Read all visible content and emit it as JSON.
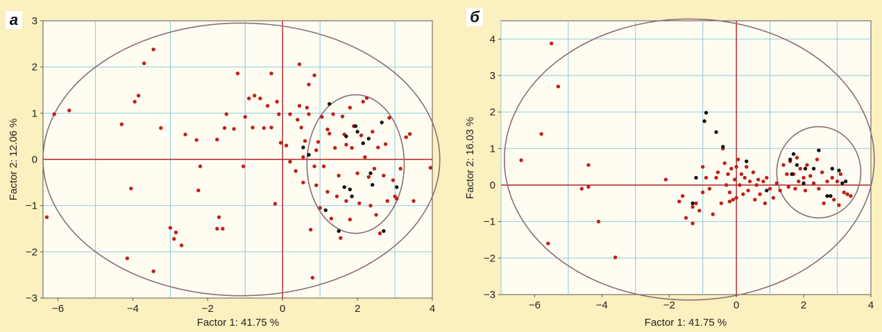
{
  "chart_data": [
    {
      "type": "scatter",
      "panel_label": "а",
      "xlabel": "Factor 1: 41.75 %",
      "ylabel": "Factor 2: 12.06 %",
      "xlim": [
        -6.4,
        4.0
      ],
      "ylim": [
        -3.0,
        3.0
      ],
      "xticks": [
        -6,
        -4,
        -2,
        0,
        2,
        4
      ],
      "yticks": [
        -3,
        -2,
        -1,
        0,
        1,
        2,
        3
      ],
      "grid": true,
      "ellipses": [
        {
          "cx": -1.1,
          "cy": 0.0,
          "rx": 5.3,
          "ry": 2.95
        },
        {
          "cx": 1.95,
          "cy": -0.1,
          "rx": 1.3,
          "ry": 1.5
        }
      ],
      "series": [
        {
          "color": "#c0201c",
          "points": [
            [
              -6.3,
              -1.25
            ],
            [
              -6.1,
              0.98
            ],
            [
              -5.7,
              1.06
            ],
            [
              -4.3,
              0.76
            ],
            [
              -4.05,
              -0.63
            ],
            [
              -3.95,
              1.25
            ],
            [
              -3.85,
              1.38
            ],
            [
              -3.7,
              2.08
            ],
            [
              -3.45,
              2.38
            ],
            [
              -3.25,
              0.68
            ],
            [
              -4.15,
              -2.14
            ],
            [
              -3.45,
              -2.42
            ],
            [
              -3.0,
              -1.48
            ],
            [
              -2.9,
              -1.72
            ],
            [
              -2.85,
              -1.58
            ],
            [
              -2.7,
              -1.86
            ],
            [
              -2.6,
              0.54
            ],
            [
              -2.3,
              0.42
            ],
            [
              -2.2,
              -0.15
            ],
            [
              -2.25,
              -0.67
            ],
            [
              -1.75,
              0.43
            ],
            [
              -1.7,
              -1.25
            ],
            [
              -1.75,
              -1.5
            ],
            [
              -1.6,
              -1.5
            ],
            [
              -1.5,
              0.98
            ],
            [
              -1.55,
              0.68
            ],
            [
              -1.3,
              0.66
            ],
            [
              -1.2,
              1.86
            ],
            [
              -1.05,
              -0.15
            ],
            [
              -1.0,
              0.92
            ],
            [
              -0.9,
              1.32
            ],
            [
              -0.8,
              0.69
            ],
            [
              -0.75,
              1.38
            ],
            [
              -0.6,
              1.32
            ],
            [
              -0.5,
              0.68
            ],
            [
              -0.4,
              1.16
            ],
            [
              -0.3,
              1.86
            ],
            [
              -0.3,
              0.69
            ],
            [
              -0.2,
              -0.96
            ],
            [
              -0.15,
              1.25
            ],
            [
              -0.1,
              0.98
            ],
            [
              -0.05,
              0.36
            ],
            [
              0.1,
              0.3
            ],
            [
              0.2,
              -0.05
            ],
            [
              0.2,
              0.98
            ],
            [
              0.35,
              -0.25
            ],
            [
              0.4,
              0.86
            ],
            [
              0.45,
              1.16
            ],
            [
              0.45,
              2.06
            ],
            [
              0.5,
              0.69
            ],
            [
              0.55,
              0.05
            ],
            [
              0.55,
              -0.5
            ],
            [
              0.6,
              0.4
            ],
            [
              0.65,
              1.12
            ],
            [
              0.7,
              1.62
            ],
            [
              0.7,
              0.98
            ],
            [
              0.75,
              -1.52
            ],
            [
              0.8,
              -2.56
            ],
            [
              0.85,
              -0.15
            ],
            [
              0.85,
              1.82
            ],
            [
              0.9,
              -0.56
            ],
            [
              0.9,
              0.2
            ],
            [
              0.95,
              0.38
            ],
            [
              1.0,
              -1.05
            ],
            [
              1.05,
              0.92
            ],
            [
              1.1,
              -0.15
            ],
            [
              1.2,
              0.65
            ],
            [
              1.2,
              -0.7
            ],
            [
              1.25,
              0.56
            ],
            [
              1.3,
              -1.28
            ],
            [
              1.35,
              0.98
            ],
            [
              1.4,
              0.25
            ],
            [
              1.45,
              -0.8
            ],
            [
              1.5,
              -0.35
            ],
            [
              1.55,
              -1.7
            ],
            [
              1.6,
              0.93
            ],
            [
              1.65,
              0.54
            ],
            [
              1.7,
              0.32
            ],
            [
              1.7,
              -0.9
            ],
            [
              1.8,
              -1.3
            ],
            [
              1.8,
              1.12
            ],
            [
              1.85,
              0.25
            ],
            [
              1.9,
              0.72
            ],
            [
              2.0,
              -0.3
            ],
            [
              2.05,
              -0.95
            ],
            [
              2.1,
              0.52
            ],
            [
              2.15,
              1.25
            ],
            [
              2.2,
              0.05
            ],
            [
              2.25,
              1.33
            ],
            [
              2.3,
              -0.38
            ],
            [
              2.35,
              -1.0
            ],
            [
              2.4,
              0.6
            ],
            [
              2.45,
              -0.2
            ],
            [
              2.5,
              -1.2
            ],
            [
              2.55,
              0.26
            ],
            [
              2.6,
              -1.6
            ],
            [
              2.7,
              -0.35
            ],
            [
              2.75,
              0.33
            ],
            [
              2.8,
              -0.9
            ],
            [
              2.85,
              0.9
            ],
            [
              2.95,
              -0.45
            ],
            [
              3.0,
              -0.8
            ],
            [
              3.05,
              -0.85
            ],
            [
              3.15,
              -0.2
            ],
            [
              3.3,
              0.48
            ],
            [
              3.4,
              0.55
            ],
            [
              3.5,
              -0.9
            ],
            [
              3.95,
              -0.18
            ]
          ]
        },
        {
          "color": "#141414",
          "points": [
            [
              0.55,
              0.26
            ],
            [
              0.7,
              0.1
            ],
            [
              1.25,
              1.2
            ],
            [
              1.65,
              -0.6
            ],
            [
              1.7,
              0.5
            ],
            [
              1.8,
              -0.65
            ],
            [
              1.85,
              -0.8
            ],
            [
              1.95,
              0.72
            ],
            [
              2.0,
              0.6
            ],
            [
              2.15,
              0.35
            ],
            [
              2.3,
              0.45
            ],
            [
              2.35,
              -0.3
            ],
            [
              2.4,
              -0.55
            ],
            [
              2.65,
              0.8
            ],
            [
              2.7,
              -1.55
            ],
            [
              3.05,
              -0.6
            ],
            [
              1.15,
              -1.1
            ],
            [
              1.5,
              -1.55
            ]
          ]
        }
      ]
    },
    {
      "type": "scatter",
      "panel_label": "б",
      "xlabel": "Factor 1: 41.75 %",
      "ylabel": "Factor 2: 16.03 %",
      "xlim": [
        -7.0,
        4.0
      ],
      "ylim": [
        -3.0,
        4.5
      ],
      "xticks": [
        -6,
        -4,
        -2,
        0,
        2,
        4
      ],
      "yticks": [
        -3,
        -2,
        -1,
        0,
        1,
        2,
        3,
        4
      ],
      "grid": true,
      "ellipses": [
        {
          "cx": -1.4,
          "cy": 0.7,
          "rx": 5.5,
          "ry": 3.85
        },
        {
          "cx": 2.45,
          "cy": 0.35,
          "rx": 1.25,
          "ry": 1.25
        }
      ],
      "series": [
        {
          "color": "#c0201c",
          "points": [
            [
              -6.4,
              0.68
            ],
            [
              -5.8,
              1.4
            ],
            [
              -5.5,
              3.88
            ],
            [
              -5.6,
              -1.6
            ],
            [
              -5.3,
              2.7
            ],
            [
              -4.6,
              -0.1
            ],
            [
              -4.4,
              -0.05
            ],
            [
              -4.4,
              0.55
            ],
            [
              -4.1,
              -1.0
            ],
            [
              -3.6,
              -1.98
            ],
            [
              -1.5,
              -0.9
            ],
            [
              -1.6,
              -0.3
            ],
            [
              -1.2,
              -0.5
            ],
            [
              -1.1,
              -0.7
            ],
            [
              -1.0,
              -0.2
            ],
            [
              -1.0,
              0.5
            ],
            [
              -0.8,
              -0.1
            ],
            [
              -0.7,
              -0.8
            ],
            [
              -0.6,
              0.2
            ],
            [
              -0.55,
              0.35
            ],
            [
              -0.45,
              -0.5
            ],
            [
              -0.4,
              1.0
            ],
            [
              -0.35,
              0.6
            ],
            [
              -0.3,
              0.0
            ],
            [
              -0.25,
              0.3
            ],
            [
              -0.2,
              -0.2
            ],
            [
              -0.15,
              0.45
            ],
            [
              -0.1,
              -0.4
            ],
            [
              -0.05,
              0.15
            ],
            [
              0.0,
              0.5
            ],
            [
              0.0,
              -0.35
            ],
            [
              0.05,
              0.7
            ],
            [
              0.1,
              0.0
            ],
            [
              0.15,
              0.3
            ],
            [
              0.2,
              -0.25
            ],
            [
              0.25,
              0.2
            ],
            [
              0.3,
              0.5
            ],
            [
              0.35,
              -0.15
            ],
            [
              0.4,
              0.1
            ],
            [
              0.5,
              0.35
            ],
            [
              0.55,
              -0.4
            ],
            [
              0.6,
              0.0
            ],
            [
              0.65,
              0.15
            ],
            [
              0.7,
              -0.25
            ],
            [
              0.8,
              0.1
            ],
            [
              0.85,
              -0.5
            ],
            [
              0.9,
              0.2
            ],
            [
              1.0,
              -0.1
            ],
            [
              1.1,
              -0.35
            ],
            [
              1.2,
              0.05
            ],
            [
              1.3,
              -0.15
            ],
            [
              1.4,
              0.55
            ],
            [
              1.5,
              0.3
            ],
            [
              1.55,
              -0.05
            ],
            [
              1.6,
              0.65
            ],
            [
              1.7,
              0.3
            ],
            [
              1.75,
              -0.1
            ],
            [
              1.8,
              0.75
            ],
            [
              1.85,
              0.1
            ],
            [
              1.9,
              0.45
            ],
            [
              2.0,
              0.2
            ],
            [
              2.05,
              -0.15
            ],
            [
              2.1,
              0.55
            ],
            [
              2.2,
              0.25
            ],
            [
              2.3,
              0.05
            ],
            [
              2.4,
              0.7
            ],
            [
              2.45,
              -0.1
            ],
            [
              2.55,
              0.35
            ],
            [
              2.6,
              -0.5
            ],
            [
              2.7,
              0.1
            ],
            [
              2.8,
              -0.3
            ],
            [
              2.85,
              0.2
            ],
            [
              2.9,
              -0.4
            ],
            [
              3.0,
              0.1
            ],
            [
              3.05,
              -0.55
            ],
            [
              3.1,
              0.3
            ],
            [
              3.2,
              -0.2
            ],
            [
              3.3,
              -0.25
            ],
            [
              3.4,
              -0.3
            ],
            [
              -1.3,
              -1.05
            ],
            [
              -1.3,
              -0.6
            ],
            [
              -2.1,
              0.15
            ],
            [
              -1.7,
              -0.45
            ],
            [
              -0.9,
              0.2
            ],
            [
              -0.2,
              -0.45
            ]
          ]
        },
        {
          "color": "#141414",
          "points": [
            [
              -0.9,
              1.98
            ],
            [
              -0.95,
              1.75
            ],
            [
              -0.6,
              1.45
            ],
            [
              -0.4,
              1.05
            ],
            [
              -1.3,
              -0.5
            ],
            [
              -1.2,
              0.2
            ],
            [
              0.3,
              0.65
            ],
            [
              0.9,
              -0.15
            ],
            [
              1.6,
              0.7
            ],
            [
              1.7,
              0.85
            ],
            [
              1.8,
              0.55
            ],
            [
              2.05,
              0.45
            ],
            [
              2.3,
              0.45
            ],
            [
              2.45,
              0.95
            ],
            [
              2.7,
              -0.3
            ],
            [
              2.8,
              -0.3
            ],
            [
              2.85,
              0.45
            ],
            [
              3.05,
              0.4
            ],
            [
              3.15,
              0.05
            ],
            [
              3.25,
              0.1
            ],
            [
              2.0,
              0.05
            ],
            [
              1.65,
              0.3
            ]
          ]
        }
      ]
    }
  ]
}
